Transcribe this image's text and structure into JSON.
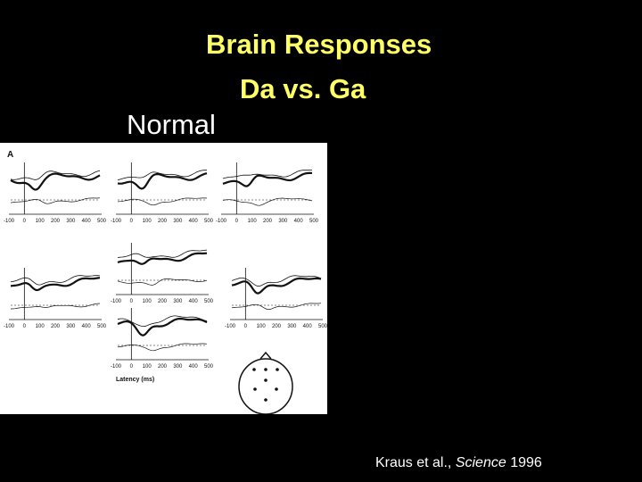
{
  "slide": {
    "title_line1": "Brain Responses",
    "title_line2": "Da vs. Ga",
    "group_label": "Normal",
    "background_color": "#000000",
    "title_color": "#FFFF66",
    "text_color": "#FFFFFF"
  },
  "figure": {
    "panel_letter": "A",
    "x_tick_labels": [
      "-100",
      "0",
      "100",
      "200",
      "300",
      "400",
      "500"
    ],
    "x_axis_label": "Latency (ms)",
    "description_icon": "scalp-electrode-map-icon"
  },
  "citation": {
    "prefix": "Kraus et al., ",
    "journal": "Science",
    "year": " 1996"
  }
}
